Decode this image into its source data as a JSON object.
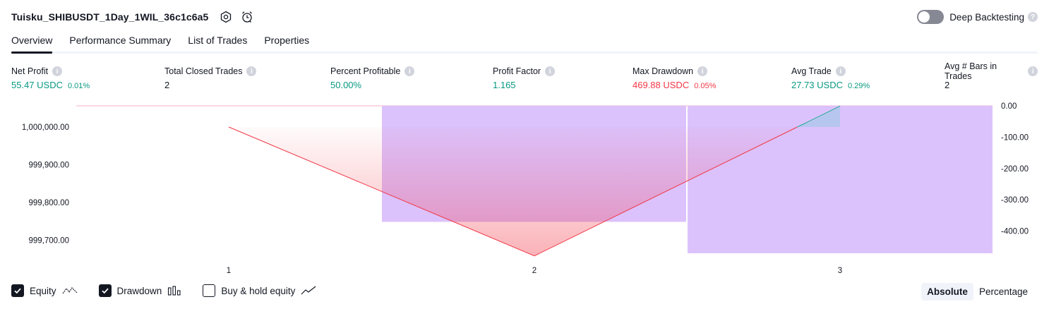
{
  "header": {
    "strategy_name": "Tuisku_SHIBUSDT_1Day_1WIL_36c1c6a5",
    "settings_icon": "gear-icon",
    "alert_icon": "alarm-clock-icon",
    "deep_backtesting_label": "Deep Backtesting",
    "deep_backtesting_enabled": false
  },
  "tabs": [
    {
      "label": "Overview",
      "active": true
    },
    {
      "label": "Performance Summary",
      "active": false
    },
    {
      "label": "List of Trades",
      "active": false
    },
    {
      "label": "Properties",
      "active": false
    }
  ],
  "stats": {
    "net_profit": {
      "label": "Net Profit",
      "value": "55.47 USDC",
      "pct": "0.01%"
    },
    "total_closed_trades": {
      "label": "Total Closed Trades",
      "value": "2"
    },
    "percent_profitable": {
      "label": "Percent Profitable",
      "value": "50.00%"
    },
    "profit_factor": {
      "label": "Profit Factor",
      "value": "1.165"
    },
    "max_drawdown": {
      "label": "Max Drawdown",
      "value": "469.88 USDC",
      "pct": "0.05%"
    },
    "avg_trade": {
      "label": "Avg Trade",
      "value": "27.73 USDC",
      "pct": "0.29%"
    },
    "avg_bars": {
      "label": "Avg # Bars in Trades",
      "value": "2"
    }
  },
  "colors": {
    "positive": "#089981",
    "negative": "#f23645",
    "drawdown_fill": "#d1b3fa",
    "equity_line": "#f23645"
  },
  "chart_data": {
    "type": "line",
    "x": [
      1,
      2,
      3
    ],
    "x_tick_labels": [
      "1",
      "2",
      "3"
    ],
    "left_axis_ticks": [
      "1,000,000.00",
      "999,900.00",
      "999,800.00",
      "999,700.00"
    ],
    "right_axis_ticks": [
      "0.00",
      "-100.00",
      "-200.00",
      "-300.00",
      "-400.00"
    ],
    "series": [
      {
        "name": "Equity",
        "values": [
          1000000.0,
          999658.5,
          1000055.47
        ]
      },
      {
        "name": "Drawdown",
        "values": [
          0,
          -369.9,
          -469.88
        ]
      }
    ],
    "left_ylim": [
      999660,
      1000055
    ],
    "right_ylim": [
      -470,
      0
    ],
    "grid": false
  },
  "legend": {
    "equity": {
      "label": "Equity",
      "checked": true
    },
    "drawdown": {
      "label": "Drawdown",
      "checked": true
    },
    "buy_hold": {
      "label": "Buy & hold equity",
      "checked": false
    }
  },
  "mode": {
    "absolute_label": "Absolute",
    "percentage_label": "Percentage",
    "selected": "Absolute"
  }
}
